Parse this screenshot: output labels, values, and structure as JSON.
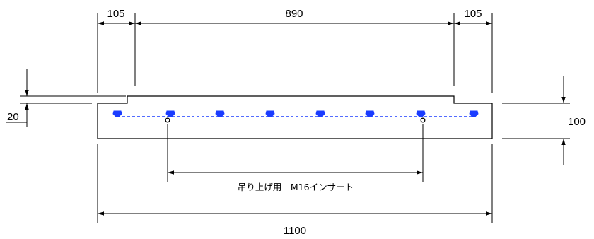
{
  "dimensions": {
    "top_left": "105",
    "top_middle": "890",
    "top_right": "105",
    "left_step": "20",
    "right_height": "100",
    "bottom_total": "1100"
  },
  "note": "吊り上げ用　M16インサート",
  "colors": {
    "line": "#000000",
    "rebar": "#1a3cff",
    "background": "#ffffff"
  }
}
